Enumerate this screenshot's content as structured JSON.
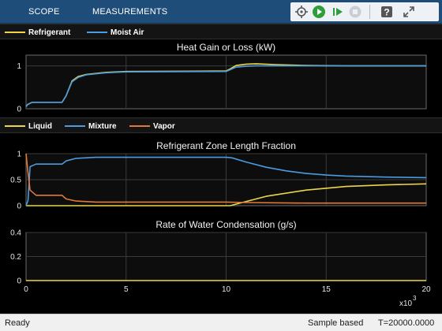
{
  "tabs": [
    "SCOPE",
    "MEASUREMENTS"
  ],
  "toolbar": {
    "icons": [
      "stiffness-icon",
      "run-icon",
      "step-forward-icon",
      "stop-icon",
      "help-icon",
      "expand-icon"
    ]
  },
  "legend1": [
    {
      "label": "Refrigerant",
      "color": "#edd54a"
    },
    {
      "label": "Moist Air",
      "color": "#4a9be0"
    }
  ],
  "legend2": [
    {
      "label": "Liquid",
      "color": "#edd54a"
    },
    {
      "label": "Mixture",
      "color": "#4a9be0"
    },
    {
      "label": "Vapor",
      "color": "#e07a34"
    }
  ],
  "status": {
    "left": "Ready",
    "mode": "Sample based",
    "time": "T=20000.0000"
  },
  "chart_data": [
    {
      "type": "line",
      "title": "Heat Gain or Loss (kW)",
      "xlim": [
        0,
        20000
      ],
      "ylim": [
        0,
        1.25
      ],
      "yticks": [
        "0",
        "1"
      ],
      "ytick_values": [
        0,
        1
      ],
      "series": [
        {
          "name": "Refrigerant",
          "color": "#edd54a",
          "x": [
            0,
            80,
            300,
            1800,
            2000,
            2300,
            2600,
            3000,
            4000,
            5000,
            10000,
            10200,
            10500,
            11000,
            11500,
            12500,
            14000,
            16000,
            20000
          ],
          "y": [
            0.05,
            0.1,
            0.15,
            0.15,
            0.3,
            0.65,
            0.75,
            0.8,
            0.85,
            0.87,
            0.88,
            0.93,
            1.01,
            1.04,
            1.05,
            1.03,
            1.01,
            1.0,
            1.0
          ]
        },
        {
          "name": "Moist Air",
          "color": "#4a9be0",
          "x": [
            0,
            80,
            300,
            1800,
            2000,
            2300,
            2600,
            3000,
            4000,
            5000,
            10000,
            10200,
            10500,
            11000,
            11500,
            12500,
            14000,
            16000,
            20000
          ],
          "y": [
            0.05,
            0.1,
            0.15,
            0.15,
            0.3,
            0.63,
            0.73,
            0.79,
            0.84,
            0.86,
            0.87,
            0.91,
            0.97,
            0.99,
            1.0,
            1.0,
            1.0,
            1.0,
            1.0
          ]
        }
      ]
    },
    {
      "type": "line",
      "title": "Refrigerant Zone Length Fraction",
      "xlim": [
        0,
        20000
      ],
      "ylim": [
        0,
        1.0
      ],
      "yticks": [
        "0",
        "0.5",
        "1"
      ],
      "ytick_values": [
        0,
        0.5,
        1
      ],
      "series": [
        {
          "name": "Liquid",
          "color": "#edd54a",
          "x": [
            0,
            10200,
            10800,
            12000,
            14000,
            16000,
            18000,
            20000
          ],
          "y": [
            0,
            0,
            0.06,
            0.18,
            0.3,
            0.37,
            0.4,
            0.42
          ]
        },
        {
          "name": "Mixture",
          "color": "#4a9be0",
          "x": [
            0,
            100,
            200,
            500,
            1800,
            2000,
            2500,
            3500,
            5000,
            10000,
            10300,
            11000,
            12000,
            13000,
            14000,
            15000,
            16000,
            18000,
            20000
          ],
          "y": [
            0,
            0.1,
            0.75,
            0.8,
            0.8,
            0.86,
            0.91,
            0.93,
            0.93,
            0.93,
            0.92,
            0.84,
            0.74,
            0.67,
            0.62,
            0.59,
            0.57,
            0.55,
            0.54
          ]
        },
        {
          "name": "Vapor",
          "color": "#e07a34",
          "x": [
            0,
            80,
            200,
            500,
            1800,
            2000,
            2500,
            3500,
            10000,
            11000,
            14000,
            20000
          ],
          "y": [
            1,
            0.7,
            0.3,
            0.2,
            0.2,
            0.13,
            0.09,
            0.07,
            0.07,
            0.06,
            0.05,
            0.05
          ]
        }
      ]
    },
    {
      "type": "line",
      "title": "Rate of Water Condensation (g/s)",
      "xlim": [
        0,
        20000
      ],
      "ylim": [
        0,
        0.4
      ],
      "yticks": [
        "0",
        "0.2",
        "0.4"
      ],
      "ytick_values": [
        0,
        0.2,
        0.4
      ],
      "xticks": [
        "0",
        "5",
        "10",
        "15",
        "20"
      ],
      "xtick_values": [
        0,
        5000,
        10000,
        15000,
        20000
      ],
      "xexponent": "x10",
      "xexponent_power": "3",
      "series": [
        {
          "name": "Condensation",
          "color": "#edd54a",
          "x": [
            0,
            20000
          ],
          "y": [
            0,
            0
          ]
        }
      ]
    }
  ]
}
